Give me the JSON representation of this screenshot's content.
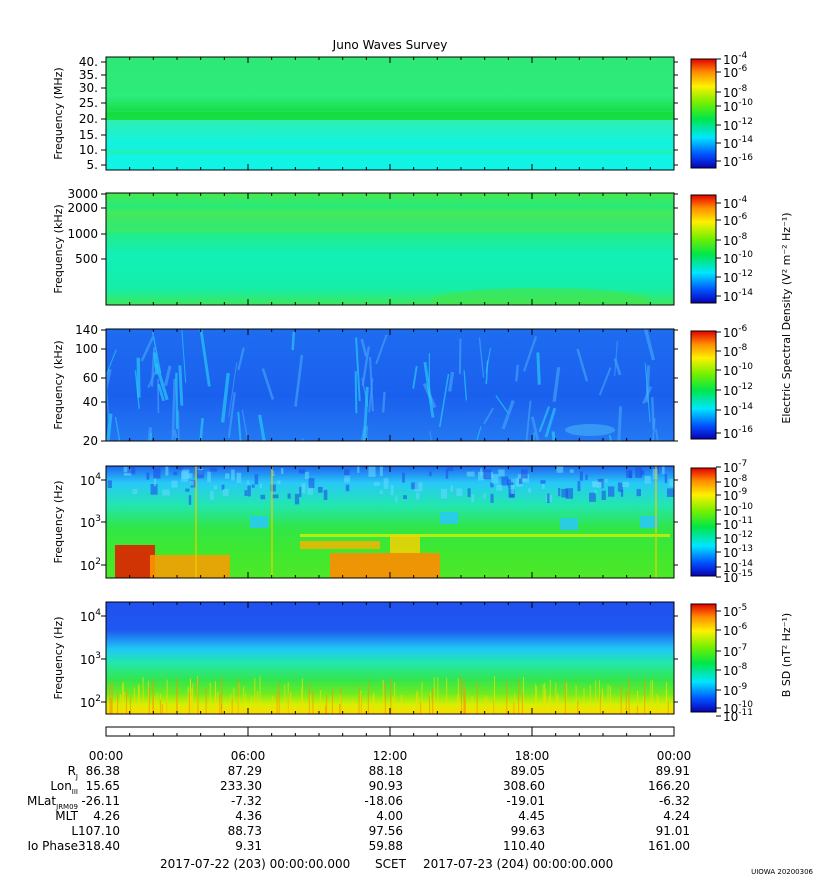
{
  "title": "Juno Waves Survey",
  "footer_stamp": "UIOWA 20200306",
  "time_axis": {
    "ticks": [
      "00:00",
      "06:00",
      "12:00",
      "18:00",
      "00:00"
    ],
    "start_label": "2017-07-22 (203) 00:00:00.000",
    "mid_label": "SCET",
    "end_label": "2017-07-23 (204) 00:00:00.000"
  },
  "ephemeris": [
    {
      "label": "R",
      "sub": "J",
      "values": [
        "86.38",
        "87.29",
        "88.18",
        "89.05",
        "89.91"
      ]
    },
    {
      "label": "Lon",
      "sub": "III",
      "values": [
        "15.65",
        "233.30",
        "90.93",
        "308.60",
        "166.20"
      ]
    },
    {
      "label": "MLat",
      "sub": "JRM09",
      "values": [
        "-26.11",
        "-7.32",
        "-18.06",
        "-19.01",
        "-6.32"
      ]
    },
    {
      "label": "MLT",
      "sub": "",
      "values": [
        "4.26",
        "4.36",
        "4.00",
        "4.45",
        "4.24"
      ]
    },
    {
      "label": "L",
      "sub": "",
      "values": [
        "107.10",
        "88.73",
        "97.56",
        "99.63",
        "91.01"
      ]
    },
    {
      "label": "Io Phase",
      "sub": "",
      "values": [
        "318.40",
        "9.31",
        "59.88",
        "110.40",
        "161.00"
      ]
    }
  ],
  "colorbar_labels": {
    "electric": "Electric Spectral Density (V² m⁻² Hz⁻¹)",
    "magnetic": "B SD (nT² Hz⁻¹)"
  },
  "chart_data": [
    {
      "type": "heatmap",
      "ylabel": "Frequency (MHz)",
      "y_ticks": [
        "40.",
        "35.",
        "30.",
        "25.",
        "20.",
        "15.",
        "10.",
        "5."
      ],
      "cbar_ticks": [
        "-4",
        "-6",
        "-8",
        "-10",
        "-12",
        "-14",
        "-16"
      ],
      "cbar_label_key": "none"
    },
    {
      "type": "heatmap",
      "ylabel": "Frequency (kHz)",
      "y_ticks": [
        "3000",
        "2000",
        "1000",
        "500"
      ],
      "cbar_ticks": [
        "-4",
        "-6",
        "-8",
        "-10",
        "-12",
        "-14"
      ],
      "cbar_label_key": "electric"
    },
    {
      "type": "heatmap",
      "ylabel": "Frequency (kHz)",
      "y_ticks": [
        "140",
        "100",
        "60",
        "40",
        "20"
      ],
      "cbar_ticks": [
        "-6",
        "-8",
        "-10",
        "-12",
        "-14",
        "-16"
      ],
      "cbar_label_key": "none"
    },
    {
      "type": "heatmap",
      "ylabel": "Frequency (Hz)",
      "y_ticks": [
        "4",
        "3",
        "2"
      ],
      "cbar_ticks": [
        "-7",
        "-8",
        "-9",
        "-10",
        "-11",
        "-12",
        "-13",
        "-14",
        "-15"
      ],
      "cbar_label_key": "none"
    },
    {
      "type": "heatmap",
      "ylabel": "Frequency (Hz)",
      "y_ticks": [
        "4",
        "3",
        "2"
      ],
      "cbar_ticks": [
        "-5",
        "-6",
        "-7",
        "-8",
        "-9",
        "-10",
        "-11"
      ],
      "cbar_label_key": "magnetic"
    }
  ]
}
